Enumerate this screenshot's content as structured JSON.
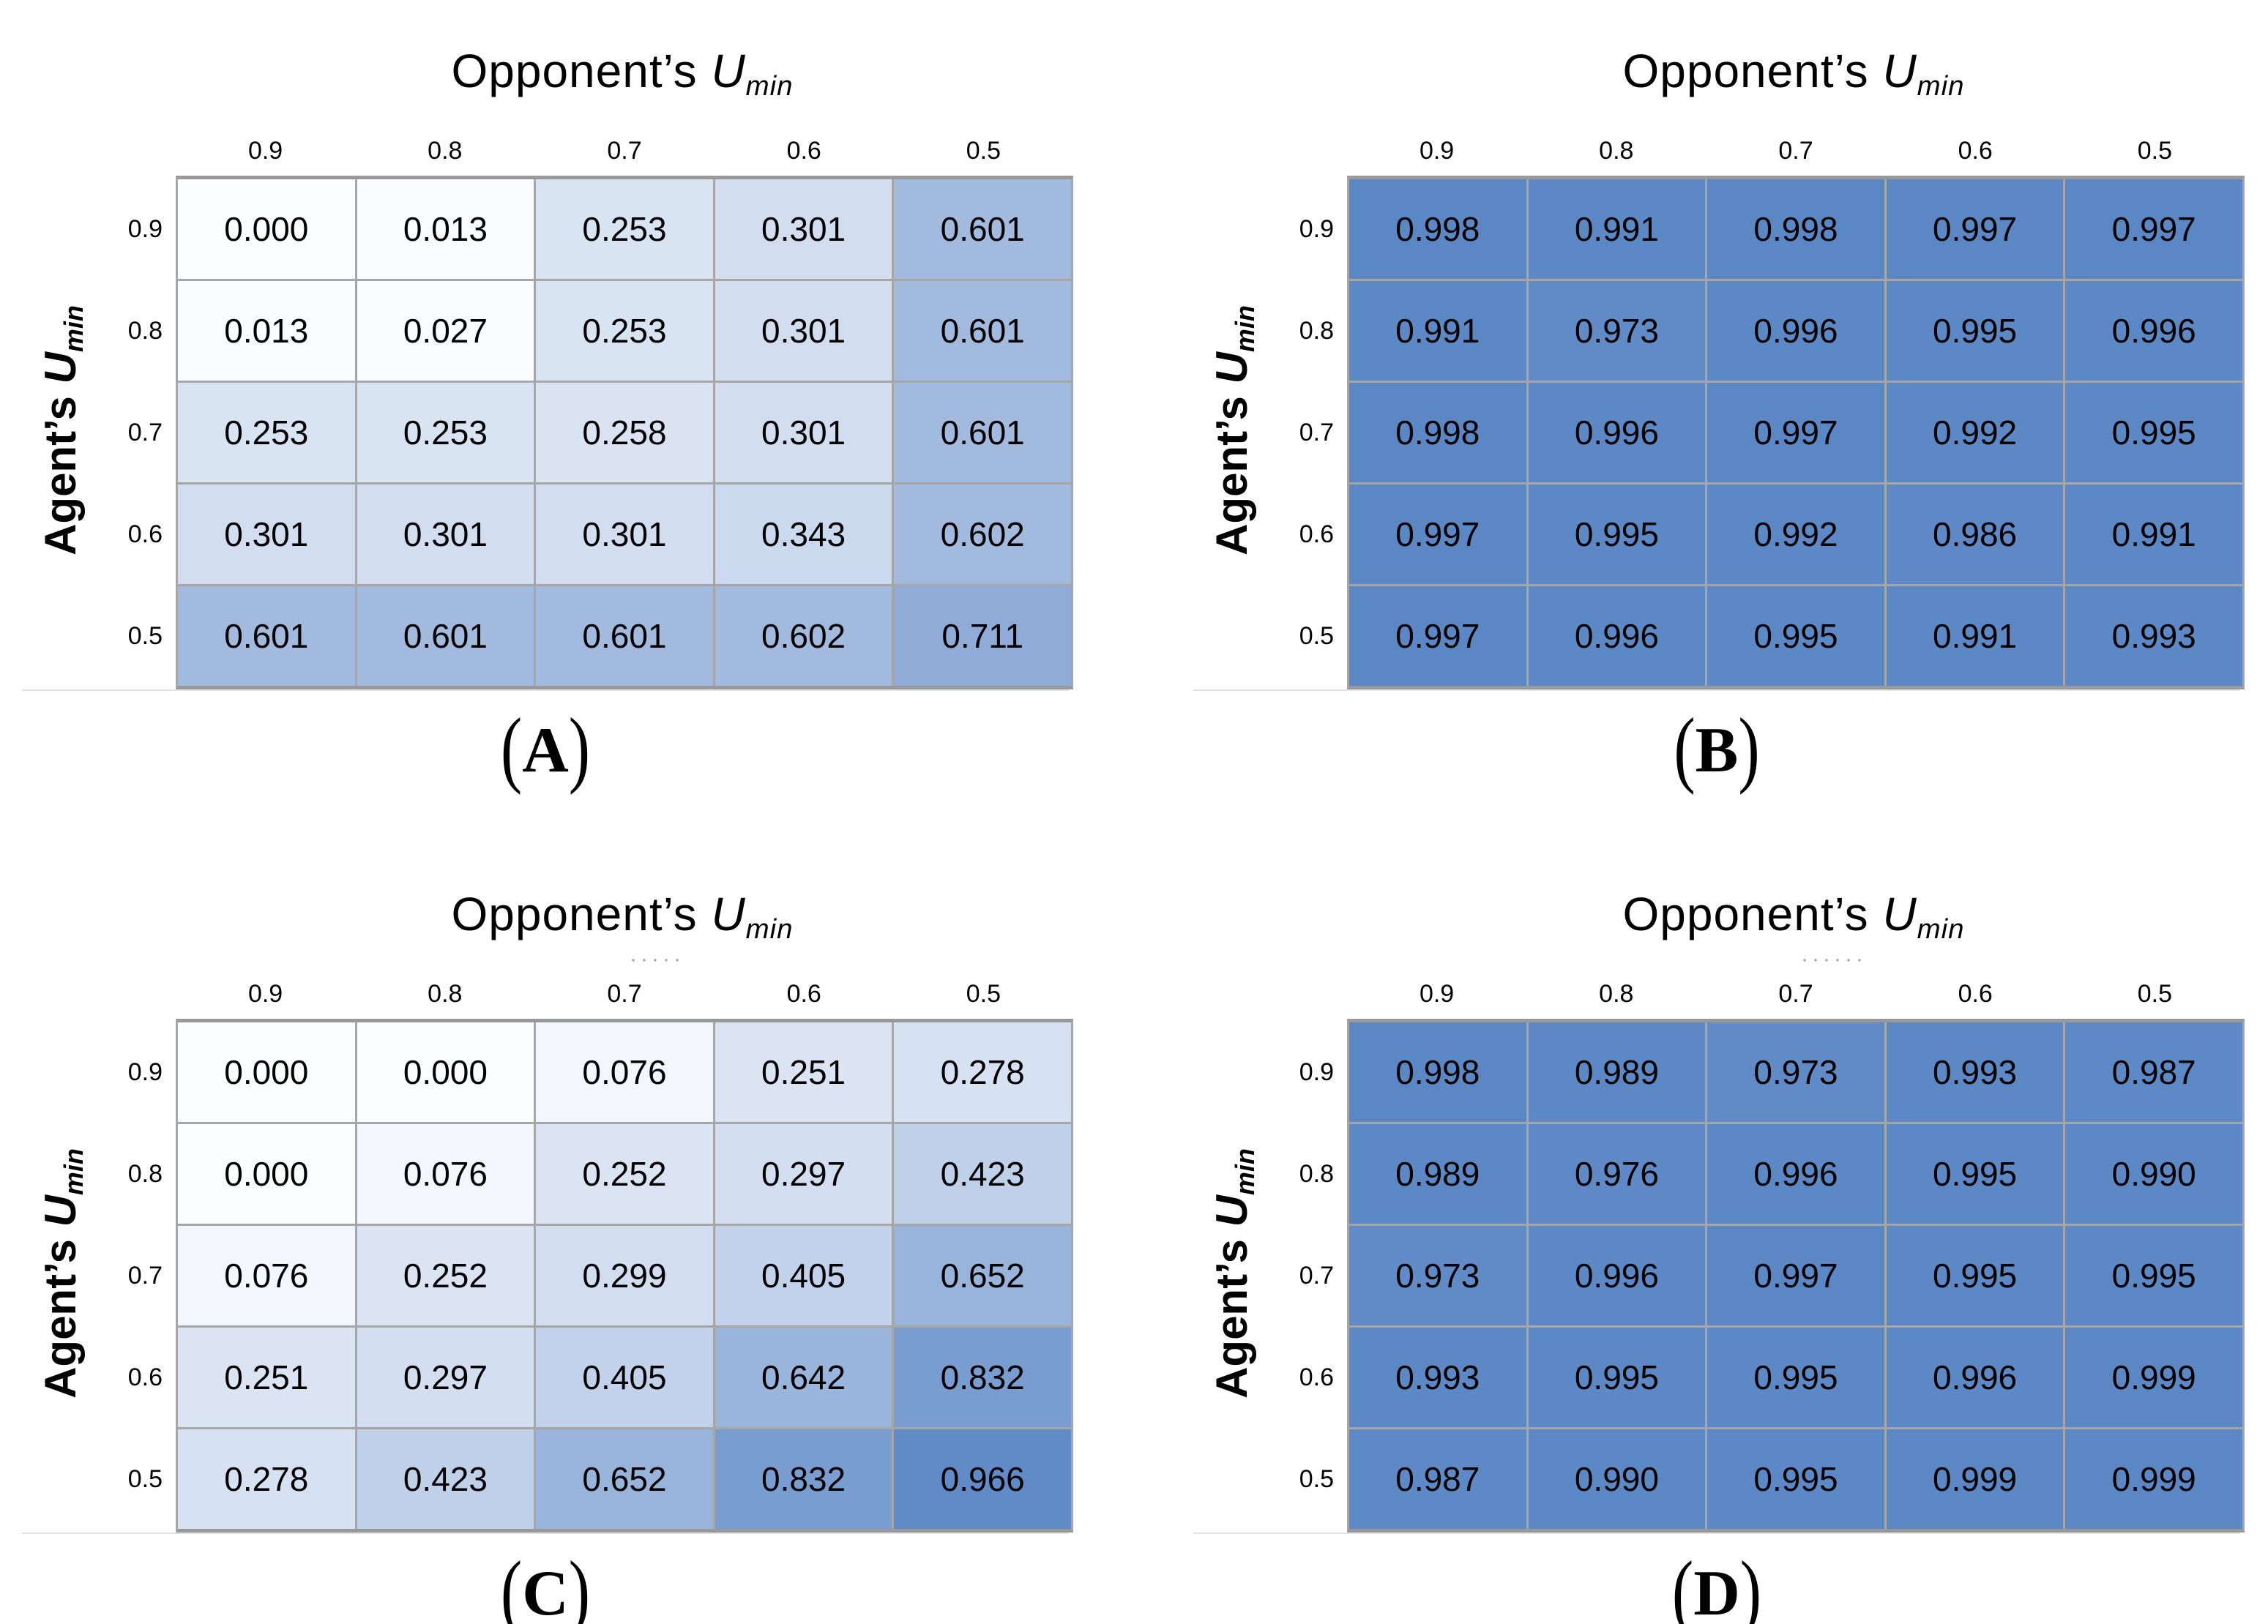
{
  "figure": {
    "col_axis": {
      "prefix": "Opponent’s ",
      "var": "U",
      "sub": "min"
    },
    "row_axis": {
      "prefix": "Agent’s ",
      "var": "U",
      "sub": "min"
    },
    "caption_open": "(",
    "caption_close": ")"
  },
  "colors": {
    "cell_low": "#fcfdff",
    "cell_high": "#5b87c5",
    "gamma": 1.12,
    "grid_line": "#a6a6a6",
    "grid_border": "#999999",
    "text": "#000000",
    "artifact_dots": "#9aa0a8",
    "faint_rule": "#e3e3e3"
  },
  "chart_data": [
    {
      "type": "heatmap",
      "panel": "A",
      "x_axis_title": "Opponent’s U_min",
      "y_axis_title": "Agent’s U_min",
      "x_ticks": [
        "0.9",
        "0.8",
        "0.7",
        "0.6",
        "0.5"
      ],
      "y_ticks": [
        "0.9",
        "0.8",
        "0.7",
        "0.6",
        "0.5"
      ],
      "value_range": [
        0,
        1
      ],
      "title_dots": "",
      "values": [
        [
          0.0,
          0.013,
          0.253,
          0.301,
          0.601
        ],
        [
          0.013,
          0.027,
          0.253,
          0.301,
          0.601
        ],
        [
          0.253,
          0.253,
          0.258,
          0.301,
          0.601
        ],
        [
          0.301,
          0.301,
          0.301,
          0.343,
          0.602
        ],
        [
          0.601,
          0.601,
          0.601,
          0.602,
          0.711
        ]
      ]
    },
    {
      "type": "heatmap",
      "panel": "B",
      "x_axis_title": "Opponent’s U_min",
      "y_axis_title": "Agent’s U_min",
      "x_ticks": [
        "0.9",
        "0.8",
        "0.7",
        "0.6",
        "0.5"
      ],
      "y_ticks": [
        "0.9",
        "0.8",
        "0.7",
        "0.6",
        "0.5"
      ],
      "value_range": [
        0,
        1
      ],
      "title_dots": "",
      "values": [
        [
          0.998,
          0.991,
          0.998,
          0.997,
          0.997
        ],
        [
          0.991,
          0.973,
          0.996,
          0.995,
          0.996
        ],
        [
          0.998,
          0.996,
          0.997,
          0.992,
          0.995
        ],
        [
          0.997,
          0.995,
          0.992,
          0.986,
          0.991
        ],
        [
          0.997,
          0.996,
          0.995,
          0.991,
          0.993
        ]
      ]
    },
    {
      "type": "heatmap",
      "panel": "C",
      "x_axis_title": "Opponent’s U_min",
      "y_axis_title": "Agent’s U_min",
      "x_ticks": [
        "0.9",
        "0.8",
        "0.7",
        "0.6",
        "0.5"
      ],
      "y_ticks": [
        "0.9",
        "0.8",
        "0.7",
        "0.6",
        "0.5"
      ],
      "value_range": [
        0,
        1
      ],
      "title_dots": "·····",
      "values": [
        [
          0.0,
          0.0,
          0.076,
          0.251,
          0.278
        ],
        [
          0.0,
          0.076,
          0.252,
          0.297,
          0.423
        ],
        [
          0.076,
          0.252,
          0.299,
          0.405,
          0.652
        ],
        [
          0.251,
          0.297,
          0.405,
          0.642,
          0.832
        ],
        [
          0.278,
          0.423,
          0.652,
          0.832,
          0.966
        ]
      ]
    },
    {
      "type": "heatmap",
      "panel": "D",
      "x_axis_title": "Opponent’s U_min",
      "y_axis_title": "Agent’s U_min",
      "x_ticks": [
        "0.9",
        "0.8",
        "0.7",
        "0.6",
        "0.5"
      ],
      "y_ticks": [
        "0.9",
        "0.8",
        "0.7",
        "0.6",
        "0.5"
      ],
      "value_range": [
        0,
        1
      ],
      "title_dots": "······",
      "values": [
        [
          0.998,
          0.989,
          0.973,
          0.993,
          0.987
        ],
        [
          0.989,
          0.976,
          0.996,
          0.995,
          0.99
        ],
        [
          0.973,
          0.996,
          0.997,
          0.995,
          0.995
        ],
        [
          0.993,
          0.995,
          0.995,
          0.996,
          0.999
        ],
        [
          0.987,
          0.99,
          0.995,
          0.999,
          0.999
        ]
      ]
    }
  ]
}
